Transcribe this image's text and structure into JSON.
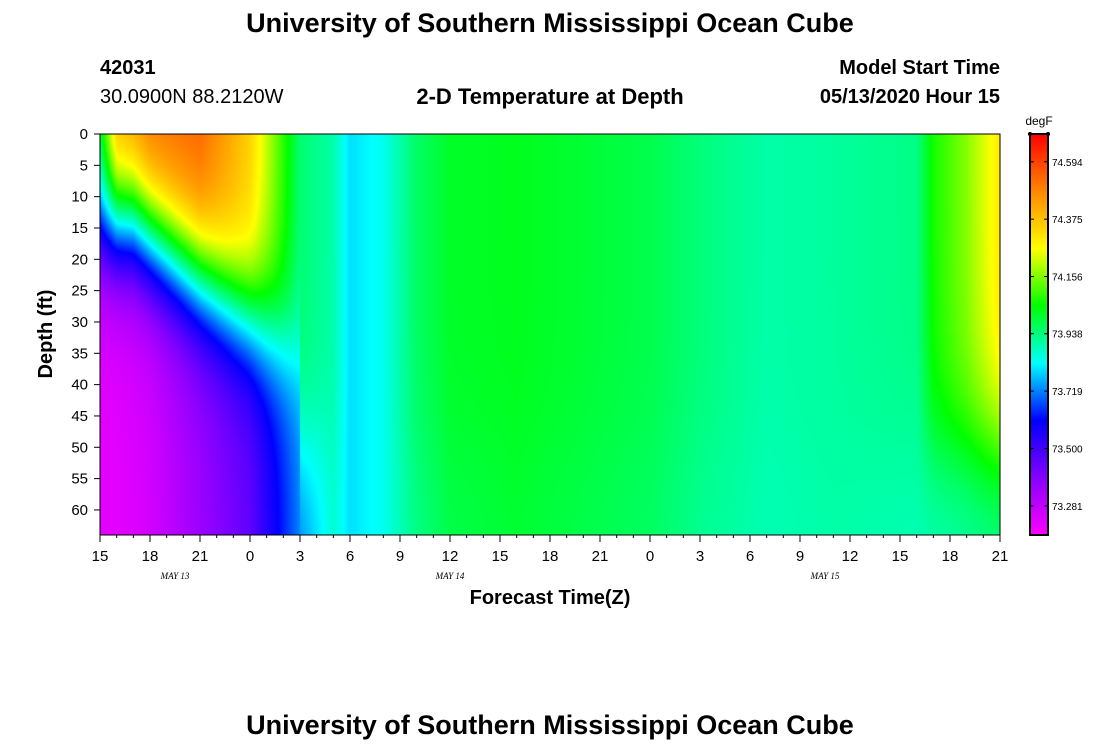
{
  "header": {
    "title_top": "University of Southern Mississippi Ocean Cube",
    "title_bottom": "University of Southern Mississippi Ocean Cube",
    "station_id": "42031",
    "station_coords": "30.0900N 88.2120W",
    "plot_title": "2-D Temperature at Depth",
    "model_label": "Model Start Time",
    "model_time": "05/13/2020 Hour 15"
  },
  "chart_data": {
    "type": "heatmap",
    "title": "2-D Temperature at Depth",
    "xlabel": "Forecast Time(Z)",
    "ylabel": "Depth (ft)",
    "x_ticks": [
      "15",
      "18",
      "21",
      "0",
      "3",
      "6",
      "9",
      "12",
      "15",
      "18",
      "21",
      "0",
      "3",
      "6",
      "9",
      "12",
      "15",
      "18",
      "21"
    ],
    "x_range_hours": [
      0,
      54
    ],
    "date_labels": [
      {
        "label": "MAY 13",
        "hour": 4.5
      },
      {
        "label": "MAY 14",
        "hour": 21
      },
      {
        "label": "MAY 15",
        "hour": 43.5
      }
    ],
    "y_ticks": [
      0,
      5,
      10,
      15,
      20,
      25,
      30,
      35,
      40,
      45,
      50,
      55,
      60
    ],
    "ylim": [
      0,
      64
    ],
    "y_inverted": true,
    "colorbar": {
      "unit": "degF",
      "ticks": [
        "74.594",
        "74.375",
        "74.156",
        "73.938",
        "73.719",
        "73.500",
        "73.281"
      ],
      "range": [
        73.17,
        74.7
      ],
      "colors": [
        "#ff00ff",
        "#8800ff",
        "#0000ff",
        "#00ffff",
        "#00ff00",
        "#ffff00",
        "#ff8800",
        "#ff0000"
      ]
    },
    "temperature_profile": [
      {
        "hour": 0,
        "surface": 74.05,
        "deep": 73.22
      },
      {
        "hour": 1,
        "surface": 74.45,
        "deep": 73.22
      },
      {
        "hour": 3,
        "surface": 74.55,
        "deep": 73.25
      },
      {
        "hour": 6,
        "surface": 74.55,
        "deep": 73.35
      },
      {
        "hour": 9,
        "surface": 74.35,
        "deep": 73.45
      },
      {
        "hour": 12,
        "surface": 73.95,
        "deep": 73.72
      },
      {
        "hour": 14,
        "surface": 73.9,
        "deep": 73.86
      },
      {
        "hour": 15,
        "surface": 73.8,
        "deep": 73.8
      },
      {
        "hour": 17,
        "surface": 73.84,
        "deep": 73.84
      },
      {
        "hour": 19,
        "surface": 73.96,
        "deep": 73.93
      },
      {
        "hour": 21,
        "surface": 74.01,
        "deep": 73.98
      },
      {
        "hour": 25,
        "surface": 74.02,
        "deep": 74.0
      },
      {
        "hour": 29,
        "surface": 74.0,
        "deep": 73.98
      },
      {
        "hour": 33,
        "surface": 73.98,
        "deep": 73.96
      },
      {
        "hour": 36,
        "surface": 73.94,
        "deep": 73.92
      },
      {
        "hour": 40,
        "surface": 73.9,
        "deep": 73.89
      },
      {
        "hour": 44,
        "surface": 73.91,
        "deep": 73.9
      },
      {
        "hour": 49,
        "surface": 73.93,
        "deep": 73.89
      },
      {
        "hour": 50,
        "surface": 74.06,
        "deep": 73.89
      },
      {
        "hour": 52,
        "surface": 74.16,
        "deep": 73.9
      },
      {
        "hour": 54,
        "surface": 74.3,
        "deep": 73.92
      }
    ]
  }
}
